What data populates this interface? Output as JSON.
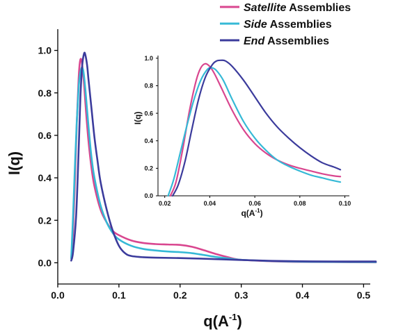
{
  "chart_data": [
    {
      "type": "line",
      "xlabel": "q(A",
      "xlabel_sup": "-1",
      "xlabel_close": ")",
      "ylabel": "I(q)",
      "xlim": [
        0.0,
        0.52
      ],
      "ylim": [
        -0.1,
        1.1
      ],
      "xticks": [
        0.0,
        0.1,
        0.2,
        0.3,
        0.4,
        0.5
      ],
      "xtick_labels": [
        "0.0",
        "0.1",
        "0.2",
        "0.3",
        "0.4",
        "0.5"
      ],
      "yticks": [
        0.0,
        0.2,
        0.4,
        0.6,
        0.8,
        1.0
      ],
      "ytick_labels": [
        "0.0",
        "0.2",
        "0.4",
        "0.6",
        "0.8",
        "1.0"
      ],
      "legend": "top-right",
      "grid": false,
      "series": [
        {
          "name_em": "Satellite",
          "name_rest": " Assemblies",
          "color": "#d9468f",
          "x": [
            0.022,
            0.025,
            0.028,
            0.031,
            0.034,
            0.036,
            0.038,
            0.04,
            0.043,
            0.046,
            0.05,
            0.055,
            0.06,
            0.07,
            0.08,
            0.09,
            0.1,
            0.12,
            0.14,
            0.16,
            0.18,
            0.2,
            0.22,
            0.24,
            0.26,
            0.28,
            0.3,
            0.35,
            0.4,
            0.45,
            0.52
          ],
          "y": [
            0.02,
            0.15,
            0.38,
            0.65,
            0.86,
            0.94,
            0.96,
            0.93,
            0.84,
            0.72,
            0.58,
            0.45,
            0.36,
            0.25,
            0.19,
            0.15,
            0.13,
            0.105,
            0.093,
            0.088,
            0.086,
            0.084,
            0.075,
            0.058,
            0.04,
            0.025,
            0.014,
            0.007,
            0.004,
            0.003,
            0.002
          ]
        },
        {
          "name_em": "Side",
          "name_rest": " Assemblies",
          "color": "#35b9d6",
          "x": [
            0.022,
            0.025,
            0.028,
            0.031,
            0.034,
            0.036,
            0.038,
            0.04,
            0.042,
            0.045,
            0.05,
            0.055,
            0.06,
            0.07,
            0.08,
            0.09,
            0.1,
            0.12,
            0.14,
            0.16,
            0.18,
            0.2,
            0.22,
            0.24,
            0.26,
            0.28,
            0.3,
            0.35,
            0.4,
            0.45,
            0.52
          ],
          "y": [
            0.02,
            0.22,
            0.45,
            0.66,
            0.82,
            0.88,
            0.91,
            0.92,
            0.9,
            0.82,
            0.65,
            0.5,
            0.4,
            0.27,
            0.19,
            0.14,
            0.11,
            0.08,
            0.065,
            0.058,
            0.053,
            0.05,
            0.045,
            0.036,
            0.027,
            0.02,
            0.014,
            0.008,
            0.005,
            0.004,
            0.003
          ]
        },
        {
          "name_em": "End",
          "name_rest": " Assemblies",
          "color": "#3b3b9c",
          "x": [
            0.022,
            0.025,
            0.03,
            0.034,
            0.037,
            0.04,
            0.043,
            0.045,
            0.048,
            0.05,
            0.055,
            0.06,
            0.065,
            0.07,
            0.08,
            0.09,
            0.1,
            0.11,
            0.12,
            0.14,
            0.16,
            0.2,
            0.25,
            0.3,
            0.35,
            0.4,
            0.45,
            0.52
          ],
          "y": [
            0.01,
            0.05,
            0.22,
            0.52,
            0.78,
            0.93,
            0.985,
            0.98,
            0.93,
            0.87,
            0.73,
            0.59,
            0.48,
            0.38,
            0.25,
            0.15,
            0.08,
            0.045,
            0.032,
            0.026,
            0.024,
            0.022,
            0.018,
            0.013,
            0.009,
            0.007,
            0.006,
            0.006
          ]
        }
      ]
    },
    {
      "type": "line",
      "inset": true,
      "xlabel": "q(A",
      "xlabel_sup": "-1",
      "xlabel_close": ")",
      "ylabel": "I(q)",
      "xlim": [
        0.017,
        0.102
      ],
      "ylim": [
        0.0,
        1.08
      ],
      "xticks": [
        0.02,
        0.04,
        0.06,
        0.08,
        0.1
      ],
      "xtick_labels": [
        "0.02",
        "0.04",
        "0.06",
        "0.08",
        "0.10"
      ],
      "yticks": [
        0.0,
        0.2,
        0.4,
        0.6,
        0.8,
        1.0
      ],
      "ytick_labels": [
        "0.0",
        "0.2",
        "0.4",
        "0.6",
        "0.8",
        "1.0"
      ],
      "series": [
        {
          "color": "#d9468f",
          "x": [
            0.0225,
            0.025,
            0.028,
            0.031,
            0.034,
            0.036,
            0.038,
            0.04,
            0.042,
            0.045,
            0.05,
            0.055,
            0.06,
            0.065,
            0.07,
            0.075,
            0.08,
            0.085,
            0.09,
            0.095,
            0.098
          ],
          "y": [
            0.0,
            0.1,
            0.34,
            0.62,
            0.84,
            0.93,
            0.96,
            0.94,
            0.89,
            0.79,
            0.62,
            0.48,
            0.38,
            0.31,
            0.26,
            0.225,
            0.2,
            0.18,
            0.16,
            0.145,
            0.14
          ]
        },
        {
          "color": "#35b9d6",
          "x": [
            0.0215,
            0.024,
            0.027,
            0.03,
            0.033,
            0.036,
            0.039,
            0.041,
            0.043,
            0.046,
            0.05,
            0.055,
            0.06,
            0.065,
            0.07,
            0.075,
            0.08,
            0.085,
            0.09,
            0.095,
            0.098
          ],
          "y": [
            0.0,
            0.12,
            0.32,
            0.52,
            0.7,
            0.84,
            0.92,
            0.93,
            0.91,
            0.84,
            0.7,
            0.54,
            0.42,
            0.33,
            0.26,
            0.215,
            0.18,
            0.15,
            0.13,
            0.11,
            0.1
          ]
        },
        {
          "color": "#3b3b9c",
          "x": [
            0.0235,
            0.026,
            0.029,
            0.032,
            0.035,
            0.038,
            0.041,
            0.043,
            0.045,
            0.047,
            0.05,
            0.055,
            0.06,
            0.065,
            0.07,
            0.075,
            0.08,
            0.085,
            0.09,
            0.095,
            0.098
          ],
          "y": [
            0.0,
            0.08,
            0.25,
            0.48,
            0.7,
            0.86,
            0.95,
            0.98,
            0.985,
            0.98,
            0.94,
            0.84,
            0.72,
            0.6,
            0.5,
            0.42,
            0.35,
            0.29,
            0.24,
            0.21,
            0.19
          ]
        }
      ]
    }
  ]
}
